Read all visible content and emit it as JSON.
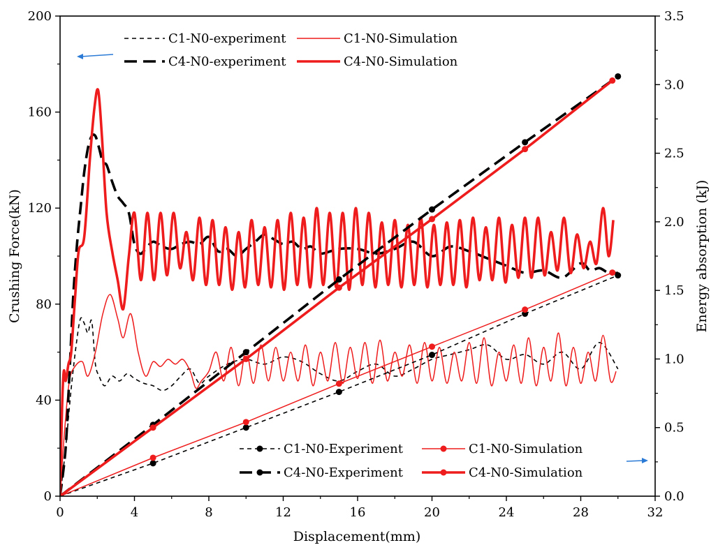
{
  "chart_data": {
    "type": "line",
    "xlabel": "Displacement(mm)",
    "ylabel_left": "Crushing Force(kN)",
    "ylabel_right": "Energy absorption (kJ)",
    "xlim": [
      0,
      32
    ],
    "ylim_left": [
      0,
      200
    ],
    "ylim_right": [
      0,
      3.5
    ],
    "x_ticks": [
      "0",
      "4",
      "8",
      "12",
      "16",
      "20",
      "24",
      "28",
      "32"
    ],
    "y_left_ticks": [
      "0",
      "40",
      "80",
      "120",
      "160",
      "200"
    ],
    "y_right_ticks": [
      "0.0",
      "0.5",
      "1.0",
      "1.5",
      "2.0",
      "2.5",
      "3.0",
      "3.5"
    ],
    "legend_force": {
      "placement": "top-left",
      "items": [
        "C1-N0-experiment",
        "C1-N0-Simulation",
        "C4-N0-experiment",
        "C4-N0-Simulation"
      ]
    },
    "legend_energy": {
      "placement": "bottom-center",
      "items": [
        "C1-N0-Experiment",
        "C1-N0-Simulation",
        "C4-N0-Experiment",
        "C4-N0-Simulation"
      ]
    },
    "colors": {
      "experiment": "#000000",
      "simulation": "#ee1c1c",
      "arrow": "#2b7bd6"
    },
    "force_series": [
      {
        "name": "C1-N0-experiment",
        "axis": "left",
        "x": [
          0,
          0.3,
          0.6,
          0.9,
          1.1,
          1.3,
          1.5,
          1.7,
          1.9,
          2.1,
          2.4,
          2.8,
          3.2,
          3.6,
          4.0,
          4.5,
          5.0,
          5.5,
          6.0,
          6.5,
          7.0,
          7.5,
          8,
          9,
          10,
          11,
          12,
          13,
          14,
          15,
          16,
          17,
          18,
          19,
          20,
          21,
          22,
          23,
          24,
          25,
          26,
          27,
          28,
          29,
          30
        ],
        "y": [
          0,
          20,
          45,
          65,
          74,
          72,
          68,
          73,
          55,
          50,
          46,
          50,
          48,
          51,
          49,
          47,
          46,
          44,
          46,
          50,
          53,
          47,
          50,
          55,
          57,
          55,
          58,
          56,
          51,
          48,
          52,
          55,
          50,
          53,
          57,
          59,
          61,
          63,
          57,
          59,
          55,
          60,
          53,
          64,
          53
        ]
      },
      {
        "name": "C1-N0-Simulation",
        "axis": "left",
        "x": [
          0,
          0.25,
          0.5,
          0.8,
          1.2,
          1.5,
          1.9,
          2.3,
          2.7,
          3.1,
          3.4,
          3.8,
          4.2,
          4.6,
          5.0,
          5.4,
          5.8,
          6.2,
          6.6,
          7.0,
          7.3,
          7.6,
          8.0,
          8.4,
          8.8,
          9.2,
          9.6,
          10.0,
          10.4,
          10.8,
          11.2,
          11.6,
          12.0,
          12.4,
          12.8,
          13.2,
          13.6,
          14.0,
          14.4,
          14.8,
          15.2,
          15.6,
          16.0,
          16.4,
          16.8,
          17.2,
          17.6,
          18.0,
          18.4,
          18.8,
          19.2,
          19.6,
          20.0,
          20.4,
          20.8,
          21.2,
          21.6,
          22.0,
          22.4,
          22.8,
          23.2,
          23.6,
          24.0,
          24.4,
          24.8,
          25.2,
          25.6,
          26.0,
          26.4,
          26.8,
          27.2,
          27.6,
          28.0,
          28.4,
          28.8,
          29.2,
          29.6,
          29.9
        ],
        "y": [
          0,
          28,
          48,
          54,
          56,
          50,
          60,
          76,
          84,
          74,
          66,
          76,
          60,
          50,
          56,
          54,
          57,
          55,
          57,
          52,
          45,
          48,
          52,
          60,
          48,
          62,
          46,
          61,
          47,
          63,
          48,
          62,
          48,
          60,
          48,
          63,
          46,
          60,
          48,
          64,
          47,
          62,
          49,
          64,
          47,
          65,
          48,
          60,
          50,
          63,
          47,
          64,
          48,
          62,
          47,
          60,
          48,
          64,
          47,
          66,
          46,
          60,
          48,
          63,
          47,
          66,
          46,
          62,
          48,
          68,
          46,
          62,
          47,
          60,
          48,
          67,
          48,
          52
        ]
      },
      {
        "name": "C4-N0-experiment",
        "axis": "left",
        "x": [
          0,
          0.3,
          0.5,
          0.7,
          0.9,
          1.1,
          1.3,
          1.5,
          1.7,
          1.9,
          2.1,
          2.3,
          2.5,
          2.8,
          3.1,
          3.4,
          3.7,
          4.0,
          4.3,
          4.6,
          5.0,
          5.5,
          6.0,
          6.5,
          7.0,
          7.5,
          8.0,
          8.5,
          9.0,
          9.5,
          10.0,
          10.5,
          11.0,
          11.5,
          12.0,
          12.5,
          13.0,
          13.5,
          14.0,
          15.0,
          16.0,
          17.0,
          18.0,
          19.0,
          20.0,
          21.0,
          22.0,
          23.0,
          24.0,
          25.0,
          26.0,
          27.0,
          28.0,
          28.5,
          29.0,
          29.5,
          30.0
        ],
        "y": [
          0,
          20,
          50,
          82,
          104,
          120,
          135,
          145,
          150,
          150,
          145,
          139,
          138,
          131,
          125,
          122,
          118,
          105,
          101,
          103,
          106,
          104,
          103,
          105,
          106,
          105,
          108,
          102,
          103,
          100,
          103,
          106,
          109,
          107,
          105,
          106,
          103,
          104,
          101,
          103,
          103,
          101,
          103,
          106,
          100,
          104,
          102,
          99,
          96,
          93,
          94,
          91,
          97,
          94,
          95,
          93,
          93
        ]
      },
      {
        "name": "C4-N0-Simulation",
        "axis": "left",
        "x": [
          0,
          0.1,
          0.2,
          0.3,
          0.45,
          0.6,
          0.8,
          1.0,
          1.3,
          1.6,
          1.85,
          2.05,
          2.25,
          2.5,
          2.8,
          3.1,
          3.4,
          3.7,
          4.0,
          4.35,
          4.7,
          5.05,
          5.4,
          5.75,
          6.1,
          6.45,
          6.8,
          7.15,
          7.5,
          7.85,
          8.2,
          8.55,
          8.9,
          9.25,
          9.6,
          9.95,
          10.3,
          10.65,
          11.0,
          11.35,
          11.7,
          12.05,
          12.4,
          12.75,
          13.1,
          13.45,
          13.8,
          14.15,
          14.5,
          14.85,
          15.2,
          15.55,
          15.9,
          16.25,
          16.6,
          16.95,
          17.3,
          17.65,
          18.0,
          18.35,
          18.7,
          19.05,
          19.4,
          19.75,
          20.1,
          20.45,
          20.8,
          21.15,
          21.5,
          21.85,
          22.2,
          22.55,
          22.9,
          23.25,
          23.6,
          23.95,
          24.3,
          24.65,
          25.0,
          25.35,
          25.7,
          26.05,
          26.4,
          26.75,
          27.1,
          27.45,
          27.8,
          28.15,
          28.5,
          28.85,
          29.2,
          29.5,
          29.75
        ],
        "y": [
          0,
          35,
          52,
          48,
          55,
          60,
          82,
          102,
          108,
          140,
          162,
          169,
          150,
          118,
          102,
          90,
          78,
          100,
          118,
          90,
          118,
          90,
          118,
          92,
          118,
          95,
          110,
          90,
          116,
          88,
          115,
          88,
          112,
          86,
          110,
          87,
          115,
          88,
          112,
          87,
          115,
          86,
          118,
          88,
          116,
          87,
          120,
          88,
          118,
          87,
          118,
          86,
          120,
          88,
          118,
          87,
          114,
          88,
          115,
          87,
          113,
          88,
          116,
          87,
          113,
          88,
          114,
          88,
          115,
          87,
          116,
          90,
          112,
          90,
          116,
          89,
          113,
          91,
          116,
          91,
          116,
          92,
          110,
          94,
          116,
          93,
          109,
          95,
          106,
          97,
          120,
          100,
          115
        ]
      }
    ],
    "energy_series": [
      {
        "name": "C1-N0-Experiment",
        "axis": "right",
        "x": [
          0,
          5,
          10,
          15,
          20,
          25,
          30
        ],
        "y": [
          0,
          0.24,
          0.5,
          0.76,
          1.03,
          1.33,
          1.61
        ],
        "marker_x": [
          5,
          10,
          15,
          20,
          25,
          30
        ],
        "marker_y": [
          0.24,
          0.5,
          0.76,
          1.03,
          1.33,
          1.61
        ]
      },
      {
        "name": "C1-N0-Simulation",
        "axis": "right",
        "x": [
          0,
          5,
          10,
          15,
          20,
          25,
          29.7
        ],
        "y": [
          0,
          0.28,
          0.54,
          0.82,
          1.09,
          1.36,
          1.63
        ],
        "marker_x": [
          5,
          10,
          15,
          20,
          25,
          29.7
        ],
        "marker_y": [
          0.28,
          0.54,
          0.82,
          1.09,
          1.36,
          1.63
        ]
      },
      {
        "name": "C4-N0-Experiment",
        "axis": "right",
        "x": [
          0,
          5,
          10,
          15,
          20,
          25,
          30
        ],
        "y": [
          0,
          0.52,
          1.05,
          1.58,
          2.09,
          2.58,
          3.06
        ],
        "marker_x": [
          5,
          10,
          15,
          20,
          25,
          30
        ],
        "marker_y": [
          0.52,
          1.05,
          1.58,
          2.09,
          2.58,
          3.06
        ]
      },
      {
        "name": "C4-N0-Simulation",
        "axis": "right",
        "x": [
          0,
          5,
          10,
          15,
          20,
          25,
          29.7
        ],
        "y": [
          0,
          0.5,
          1.0,
          1.52,
          2.02,
          2.53,
          3.03
        ],
        "marker_x": [
          5,
          10,
          15,
          20,
          25,
          29.7
        ],
        "marker_y": [
          0.5,
          1.0,
          1.52,
          2.02,
          2.53,
          3.03
        ]
      }
    ]
  }
}
